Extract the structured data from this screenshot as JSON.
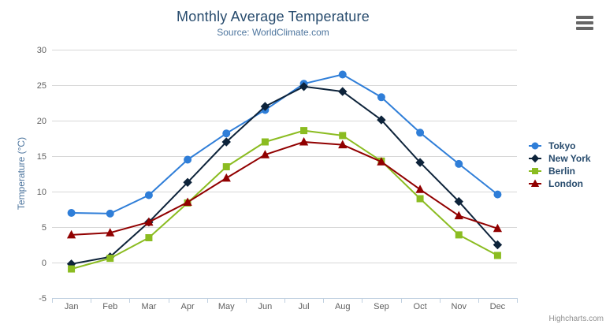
{
  "header": {
    "title": "Monthly Average Temperature",
    "subtitle": "Source: WorldClimate.com"
  },
  "credits": {
    "label": "Highcharts.com"
  },
  "icons": {
    "menu": "hamburger-menu-icon"
  },
  "colors": {
    "background": "#ffffff",
    "title": "#274b6d",
    "subtitle": "#4d759e",
    "axis_title": "#4d759e",
    "tick_label": "#606060",
    "grid_line": "#d8d8d8",
    "axis_line": "#c0d0e0",
    "legend_text": "#274b6d",
    "credits": "#909090",
    "menu_icon": "#666666"
  },
  "chart_data": {
    "type": "line",
    "title": "Monthly Average Temperature",
    "subtitle": "Source: WorldClimate.com",
    "xlabel": "",
    "ylabel": "Temperature (°C)",
    "categories": [
      "Jan",
      "Feb",
      "Mar",
      "Apr",
      "May",
      "Jun",
      "Jul",
      "Aug",
      "Sep",
      "Oct",
      "Nov",
      "Dec"
    ],
    "yticks": [
      -5,
      0,
      5,
      10,
      15,
      20,
      25,
      30
    ],
    "ylim": [
      -5,
      30
    ],
    "grid": true,
    "legend_position": "right-middle",
    "series": [
      {
        "name": "Tokyo",
        "color": "#2f7ed8",
        "marker": "circle",
        "values": [
          7.0,
          6.9,
          9.5,
          14.5,
          18.2,
          21.5,
          25.2,
          26.5,
          23.3,
          18.3,
          13.9,
          9.6
        ]
      },
      {
        "name": "New York",
        "color": "#0d233a",
        "marker": "diamond",
        "values": [
          -0.2,
          0.8,
          5.7,
          11.3,
          17.0,
          22.0,
          24.8,
          24.1,
          20.1,
          14.1,
          8.6,
          2.5
        ]
      },
      {
        "name": "Berlin",
        "color": "#8bbc21",
        "marker": "square",
        "values": [
          -0.9,
          0.6,
          3.5,
          8.4,
          13.5,
          17.0,
          18.6,
          17.9,
          14.3,
          9.0,
          3.9,
          1.0
        ]
      },
      {
        "name": "London",
        "color": "#910000",
        "marker": "triangle",
        "values": [
          3.9,
          4.2,
          5.7,
          8.5,
          11.9,
          15.2,
          17.0,
          16.6,
          14.2,
          10.3,
          6.6,
          4.8
        ]
      }
    ]
  }
}
